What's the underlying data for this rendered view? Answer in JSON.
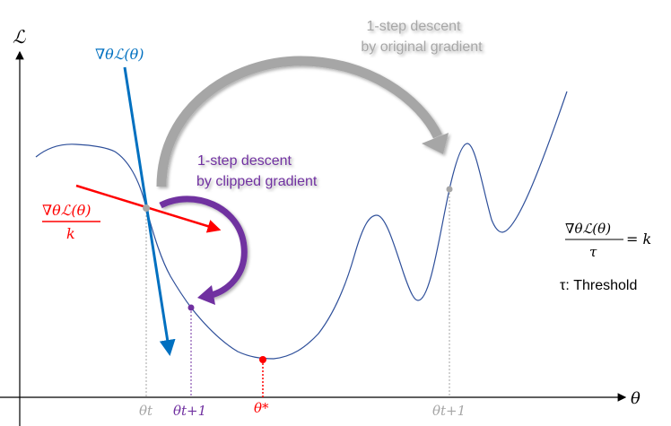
{
  "axes": {
    "y_label": "ℒ",
    "x_label": "θ"
  },
  "gradient_label": "∇θℒ(θ)",
  "clipped_gradient_label": {
    "numerator": "∇θℒ(θ)",
    "denominator": "k"
  },
  "original_step_text": [
    "1-step descent",
    "by original gradient"
  ],
  "clipped_step_text": [
    "1-step descent",
    "by clipped gradient"
  ],
  "ticks": {
    "theta_t": "θt",
    "theta_t1_clipped": "θt+1",
    "theta_star": "θ*",
    "theta_t1_original": "θt+1"
  },
  "formula": {
    "numerator": "∇θℒ(θ)",
    "denominator": "τ",
    "rhs": "= k",
    "threshold_note": "τ: Threshold"
  },
  "colors": {
    "curve": "#2e4f9a",
    "gradient": "#0070c0",
    "clipped": "#ff0000",
    "original_arrow": "#a6a6a6",
    "clipped_arrow": "#7030a0",
    "text": "#000000"
  }
}
